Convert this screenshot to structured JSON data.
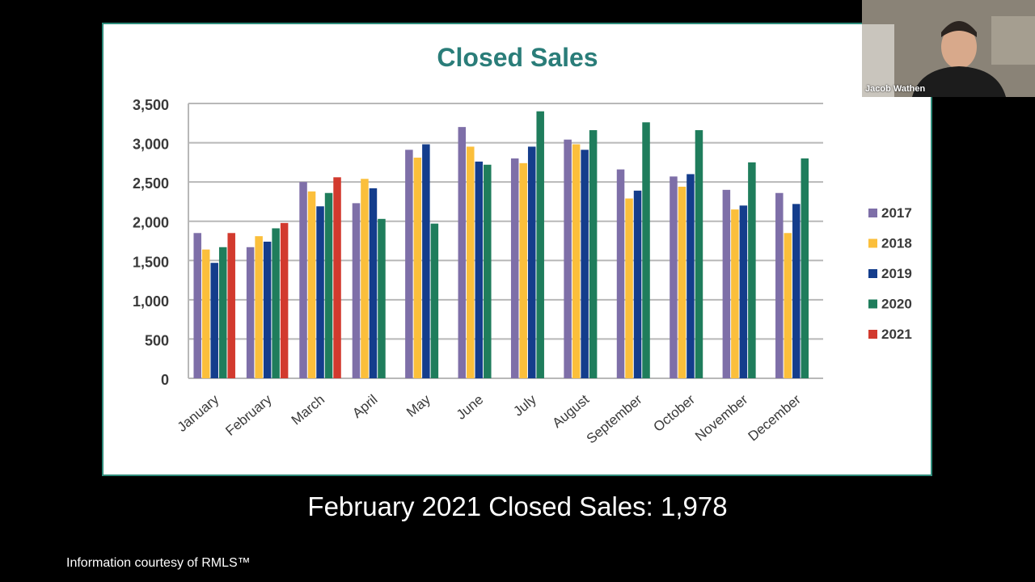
{
  "chart_data": {
    "type": "bar",
    "title": "Closed Sales",
    "categories": [
      "January",
      "February",
      "March",
      "April",
      "May",
      "June",
      "July",
      "August",
      "September",
      "October",
      "November",
      "December"
    ],
    "ylim": [
      0,
      3500
    ],
    "yticks": [
      "0",
      "500",
      "1,000",
      "1,500",
      "2,000",
      "2,500",
      "3,000",
      "3,500"
    ],
    "grid": true,
    "legend_position": "right",
    "series": [
      {
        "name": "2017",
        "color": "#7e6fa8",
        "values": [
          1850,
          1670,
          2500,
          2230,
          2910,
          3200,
          2800,
          3040,
          2660,
          2570,
          2400,
          2360
        ]
      },
      {
        "name": "2018",
        "color": "#fbbf3b",
        "values": [
          1640,
          1810,
          2380,
          2540,
          2810,
          2950,
          2740,
          2980,
          2290,
          2440,
          2150,
          1850
        ]
      },
      {
        "name": "2019",
        "color": "#143d8c",
        "values": [
          1470,
          1740,
          2190,
          2420,
          2980,
          2760,
          2950,
          2910,
          2390,
          2600,
          2200,
          2220
        ]
      },
      {
        "name": "2020",
        "color": "#1f7d5c",
        "values": [
          1670,
          1910,
          2360,
          2030,
          1970,
          2720,
          3400,
          3160,
          3260,
          3160,
          2750,
          2800
        ]
      },
      {
        "name": "2021",
        "color": "#d23a2e",
        "values": [
          1850,
          1978,
          2560,
          null,
          null,
          null,
          null,
          null,
          null,
          null,
          null,
          null
        ]
      }
    ]
  },
  "caption": "February 2021 Closed Sales: 1,978",
  "footer": "Information courtesy of RMLS™",
  "video": {
    "participant_name": "Jacob Wathen"
  }
}
